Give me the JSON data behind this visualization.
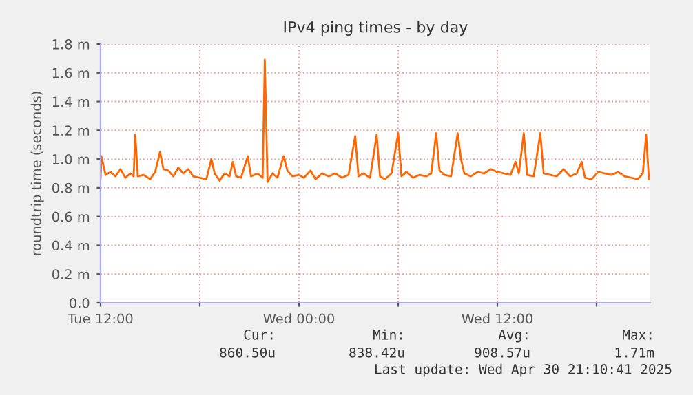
{
  "chart_data": {
    "type": "line",
    "title": "IPv4 ping times - by day",
    "ylabel": "roundtrip time (seconds)",
    "x": [
      "2025-04-29T12:00",
      "2025-04-29T12:03",
      "2025-04-29T12:18",
      "2025-04-29T12:36",
      "2025-04-29T12:54",
      "2025-04-29T13:12",
      "2025-04-29T13:30",
      "2025-04-29T13:48",
      "2025-04-29T14:00",
      "2025-04-29T14:06",
      "2025-04-29T14:15",
      "2025-04-29T14:36",
      "2025-04-29T15:00",
      "2025-04-29T15:18",
      "2025-04-29T15:36",
      "2025-04-29T15:48",
      "2025-04-29T16:06",
      "2025-04-29T16:24",
      "2025-04-29T16:42",
      "2025-04-29T17:00",
      "2025-04-29T17:18",
      "2025-04-29T17:36",
      "2025-04-29T18:00",
      "2025-04-29T18:24",
      "2025-04-29T18:42",
      "2025-04-29T18:54",
      "2025-04-29T19:12",
      "2025-04-29T19:30",
      "2025-04-29T19:48",
      "2025-04-29T20:00",
      "2025-04-29T20:12",
      "2025-04-29T20:30",
      "2025-04-29T20:54",
      "2025-04-29T21:06",
      "2025-04-29T21:30",
      "2025-04-29T21:48",
      "2025-04-29T21:56",
      "2025-04-29T22:06",
      "2025-04-29T22:24",
      "2025-04-29T22:42",
      "2025-04-29T23:04",
      "2025-04-29T23:18",
      "2025-04-29T23:36",
      "2025-04-30T00:00",
      "2025-04-30T00:18",
      "2025-04-30T00:42",
      "2025-04-30T01:00",
      "2025-04-30T01:24",
      "2025-04-30T01:48",
      "2025-04-30T02:12",
      "2025-04-30T02:36",
      "2025-04-30T03:00",
      "2025-04-30T03:24",
      "2025-04-30T03:36",
      "2025-04-30T03:54",
      "2025-04-30T04:18",
      "2025-04-30T04:42",
      "2025-04-30T04:54",
      "2025-04-30T05:12",
      "2025-04-30T05:36",
      "2025-04-30T06:00",
      "2025-04-30T06:12",
      "2025-04-30T06:30",
      "2025-04-30T06:54",
      "2025-04-30T07:18",
      "2025-04-30T07:42",
      "2025-04-30T08:00",
      "2025-04-30T08:18",
      "2025-04-30T08:30",
      "2025-04-30T08:48",
      "2025-04-30T09:12",
      "2025-04-30T09:36",
      "2025-04-30T09:48",
      "2025-04-30T10:00",
      "2025-04-30T10:24",
      "2025-04-30T10:48",
      "2025-04-30T11:12",
      "2025-04-30T11:36",
      "2025-04-30T12:00",
      "2025-04-30T12:24",
      "2025-04-30T12:48",
      "2025-04-30T13:06",
      "2025-04-30T13:18",
      "2025-04-30T13:36",
      "2025-04-30T13:48",
      "2025-04-30T14:12",
      "2025-04-30T14:36",
      "2025-04-30T14:48",
      "2025-04-30T15:12",
      "2025-04-30T15:36",
      "2025-04-30T16:00",
      "2025-04-30T16:24",
      "2025-04-30T16:48",
      "2025-04-30T17:06",
      "2025-04-30T17:18",
      "2025-04-30T17:42",
      "2025-04-30T18:06",
      "2025-04-30T18:30",
      "2025-04-30T18:54",
      "2025-04-30T19:18",
      "2025-04-30T19:42",
      "2025-04-30T20:06",
      "2025-04-30T20:30",
      "2025-04-30T20:48",
      "2025-04-30T21:00",
      "2025-04-30T21:10"
    ],
    "series": [
      {
        "color": "#ff6600",
        "values": [
          0.86,
          1.02,
          0.89,
          0.91,
          0.88,
          0.93,
          0.87,
          0.9,
          0.88,
          1.17,
          0.88,
          0.89,
          0.86,
          0.91,
          1.05,
          0.93,
          0.92,
          0.88,
          0.94,
          0.9,
          0.93,
          0.88,
          0.87,
          0.86,
          1.0,
          0.9,
          0.85,
          0.9,
          0.88,
          0.98,
          0.88,
          0.87,
          1.02,
          0.88,
          0.9,
          0.87,
          1.69,
          0.84,
          0.9,
          0.87,
          1.02,
          0.92,
          0.88,
          0.89,
          0.87,
          0.92,
          0.86,
          0.9,
          0.88,
          0.9,
          0.87,
          0.89,
          1.16,
          0.88,
          0.9,
          0.87,
          1.17,
          0.88,
          0.86,
          0.9,
          1.18,
          0.88,
          0.91,
          0.87,
          0.89,
          0.88,
          0.9,
          1.18,
          0.92,
          0.89,
          0.88,
          1.18,
          1.0,
          0.9,
          0.88,
          0.91,
          0.9,
          0.93,
          0.91,
          0.9,
          0.89,
          0.98,
          0.9,
          1.18,
          0.89,
          0.88,
          1.18,
          0.9,
          0.89,
          0.88,
          0.93,
          0.88,
          0.9,
          0.98,
          0.87,
          0.86,
          0.91,
          0.9,
          0.89,
          0.91,
          0.88,
          0.87,
          0.86,
          0.9,
          1.17,
          0.86
        ]
      }
    ],
    "xlim": [
      "2025-04-29T12:00",
      "2025-04-30T21:15"
    ],
    "xticks": [
      {
        "value": "2025-04-29T12:00",
        "label": "Tue 12:00"
      },
      {
        "value": "2025-04-29T18:00",
        "label": null
      },
      {
        "value": "2025-04-30T00:00",
        "label": "Wed 00:00"
      },
      {
        "value": "2025-04-30T06:00",
        "label": null
      },
      {
        "value": "2025-04-30T12:00",
        "label": "Wed 12:00"
      },
      {
        "value": "2025-04-30T18:00",
        "label": null
      }
    ],
    "ylim": [
      0,
      1.8
    ],
    "yticks": [
      {
        "value": 0,
        "label": "0.0"
      },
      {
        "value": 0.2,
        "label": "0.2 m"
      },
      {
        "value": 0.4,
        "label": "0.4 m"
      },
      {
        "value": 0.6,
        "label": "0.6 m"
      },
      {
        "value": 0.8,
        "label": "0.8 m"
      },
      {
        "value": 1.0,
        "label": "1.0 m"
      },
      {
        "value": 1.2,
        "label": "1.2 m"
      },
      {
        "value": 1.4,
        "label": "1.4 m"
      },
      {
        "value": 1.6,
        "label": "1.6 m"
      },
      {
        "value": 1.8,
        "label": "1.8 m"
      }
    ],
    "grid": true,
    "legend": false,
    "annotations": [
      "Cur:",
      "Min:",
      "Avg:",
      "Max:",
      "860.50u",
      "838.42u",
      "908.57u",
      "1.71m",
      "Last update: Wed Apr 30 21:10:41 2025"
    ]
  }
}
